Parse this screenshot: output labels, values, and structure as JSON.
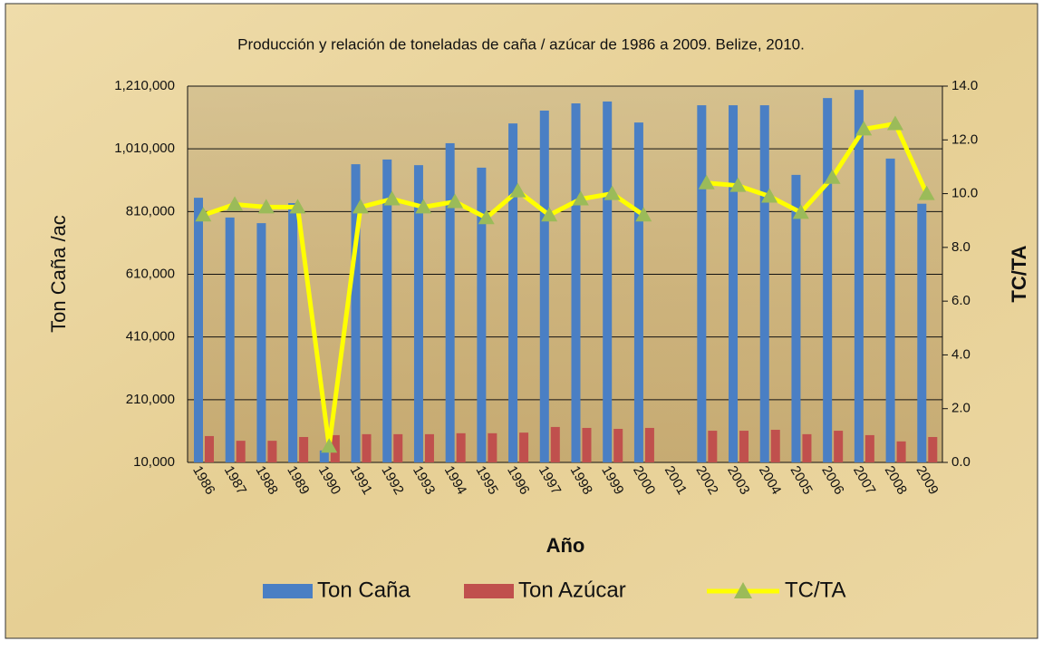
{
  "chart_data": {
    "type": "bar_line",
    "title": "Producción y relación de toneladas de caña / azúcar de 1986 a 2009. Belize, 2010.",
    "x_label": "Año",
    "y_label": "Ton Caña /ac",
    "y2_label": "TC/TA",
    "categories": [
      "1986",
      "1987",
      "1988",
      "1989",
      "1990",
      "1991",
      "1992",
      "1993",
      "1994",
      "1995",
      "1996",
      "1997",
      "1998",
      "1999",
      "2000",
      "2001",
      "2002",
      "2003",
      "2004",
      "2005",
      "2006",
      "2007",
      "2008",
      "2009"
    ],
    "series": [
      {
        "name": "Ton Caña",
        "color": "#4a7fc4",
        "type": "bar",
        "values": [
          854000,
          791000,
          773000,
          837000,
          48000,
          961000,
          976000,
          958000,
          1028000,
          950000,
          1091000,
          1132000,
          1155000,
          1161000,
          1094000,
          null,
          1149000,
          1149000,
          1149000,
          927000,
          1172000,
          1198000,
          979000,
          835000
        ]
      },
      {
        "name": "Ton Azúcar",
        "color": "#c0504d",
        "type": "bar",
        "values": [
          94000,
          79000,
          79000,
          91000,
          97000,
          100000,
          100000,
          100000,
          103000,
          103000,
          105000,
          123000,
          120000,
          117000,
          120000,
          null,
          111000,
          111000,
          114000,
          100000,
          111000,
          97000,
          77000,
          91000
        ]
      },
      {
        "name": "TC/TA",
        "color": "#ffff00",
        "marker_color": "#9bbb59",
        "type": "line",
        "axis": "y2",
        "values": [
          9.2,
          9.6,
          9.5,
          9.5,
          0.6,
          9.5,
          9.8,
          9.5,
          9.7,
          9.1,
          10.1,
          9.2,
          9.8,
          10.0,
          9.2,
          null,
          10.4,
          10.3,
          9.9,
          9.3,
          10.6,
          12.4,
          12.6,
          10.0
        ]
      }
    ],
    "ylim": [
      10000,
      1210000
    ],
    "yticks": [
      {
        "value": 10000,
        "label": "10,000"
      },
      {
        "value": 210000,
        "label": "210,000"
      },
      {
        "value": 410000,
        "label": "410,000"
      },
      {
        "value": 610000,
        "label": "610,000"
      },
      {
        "value": 810000,
        "label": "810,000"
      },
      {
        "value": 1010000,
        "label": "1,010,000"
      },
      {
        "value": 1210000,
        "label": "1,210,000"
      }
    ],
    "y2lim": [
      0,
      14
    ],
    "y2ticks": [
      {
        "value": 0,
        "label": "0.0"
      },
      {
        "value": 2,
        "label": "2.0"
      },
      {
        "value": 4,
        "label": "4.0"
      },
      {
        "value": 6,
        "label": "6.0"
      },
      {
        "value": 8,
        "label": "8.0"
      },
      {
        "value": 10,
        "label": "10.0"
      },
      {
        "value": 12,
        "label": "12.0"
      },
      {
        "value": 14,
        "label": "14.0"
      }
    ],
    "grid": true,
    "legend": "bottom"
  }
}
